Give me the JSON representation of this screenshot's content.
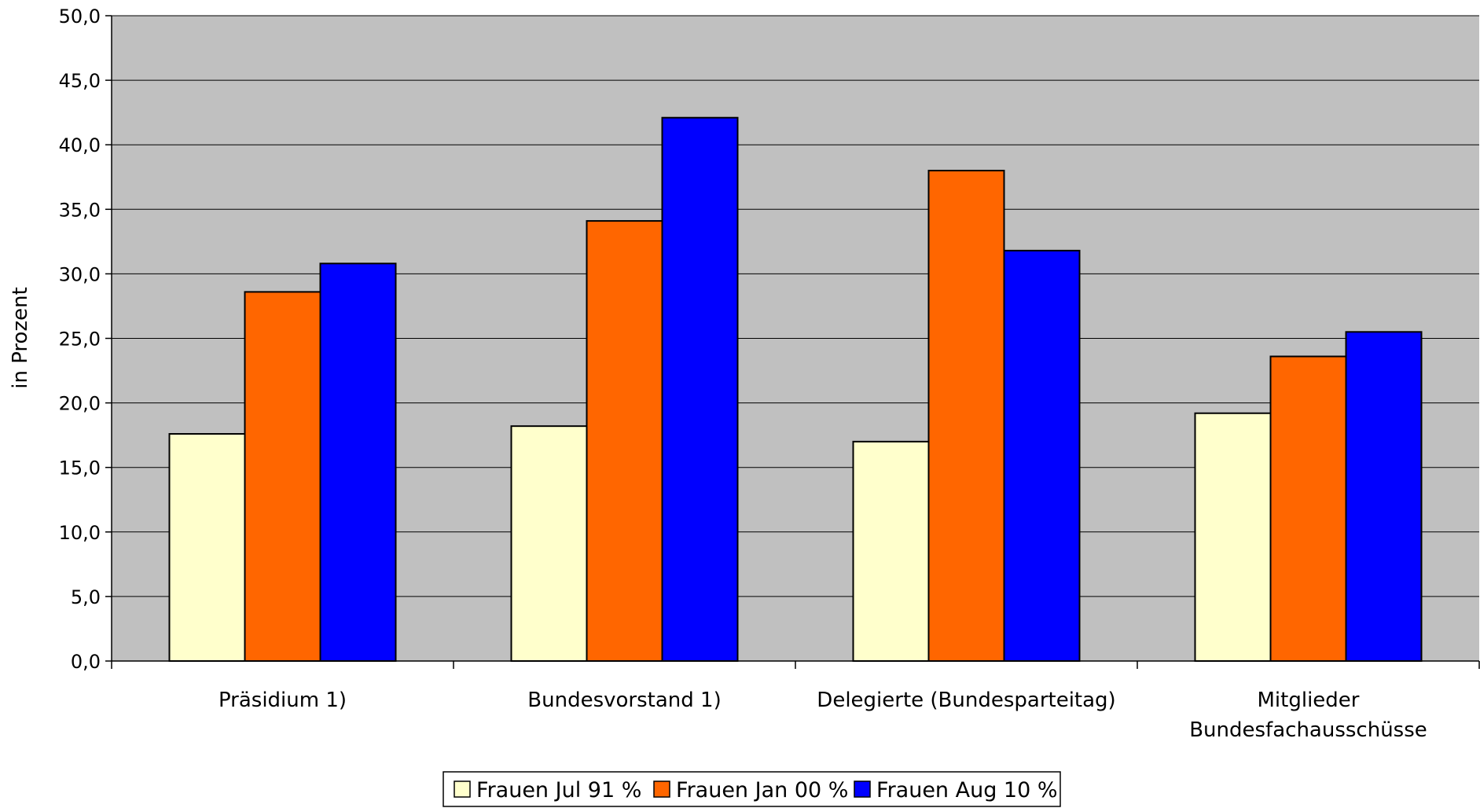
{
  "chart_data": {
    "type": "bar",
    "title": "",
    "xlabel": "",
    "ylabel": "in Prozent",
    "ylim": [
      0,
      50
    ],
    "ytick_step": 5,
    "ytick_labels": [
      "0,0",
      "5,0",
      "10,0",
      "15,0",
      "20,0",
      "25,0",
      "30,0",
      "35,0",
      "40,0",
      "45,0",
      "50,0"
    ],
    "grid": true,
    "legend_position": "bottom-center",
    "plot_background": "#c0c0c0",
    "categories": [
      [
        "Präsidium 1)"
      ],
      [
        "Bundesvorstand 1)"
      ],
      [
        "Delegierte (Bundesparteitag)"
      ],
      [
        "Mitglieder",
        "Bundesfachausschüsse"
      ]
    ],
    "series": [
      {
        "name": "Frauen Jul 91 %",
        "color": "#ffffcc",
        "values": [
          17.6,
          18.2,
          17.0,
          19.2
        ]
      },
      {
        "name": "Frauen Jan 00 %",
        "color": "#ff6600",
        "values": [
          28.6,
          34.1,
          38.0,
          23.6
        ]
      },
      {
        "name": "Frauen Aug 10 %",
        "color": "#0000ff",
        "values": [
          30.8,
          42.1,
          31.8,
          25.5
        ]
      }
    ]
  }
}
